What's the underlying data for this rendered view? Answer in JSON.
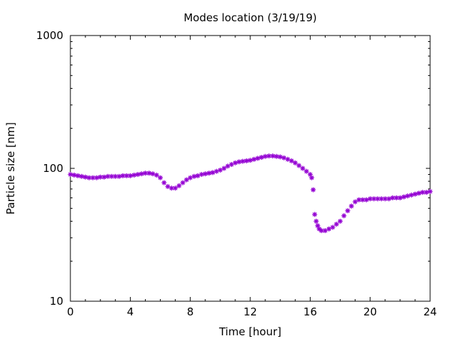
{
  "chart_data": {
    "type": "scatter",
    "title": "Modes location (3/19/19)",
    "xlabel": "Time [hour]",
    "ylabel": "Particle size [nm]",
    "xlim": [
      0,
      24
    ],
    "ylim": [
      10,
      1000
    ],
    "yscale": "log",
    "xticks": [
      "0",
      "4",
      "8",
      "12",
      "16",
      "20",
      "24"
    ],
    "yticks": [
      "10",
      "100",
      "1000"
    ],
    "grid": false,
    "marker_color": "#9400d3",
    "marker": "star",
    "series": [
      {
        "x": [
          0.0,
          0.25,
          0.5,
          0.75,
          1.0,
          1.25,
          1.5,
          1.75,
          2.0,
          2.25,
          2.5,
          2.75,
          3.0,
          3.25,
          3.5,
          3.75,
          4.0,
          4.25,
          4.5,
          4.75,
          5.0,
          5.25,
          5.5,
          5.75,
          6.0,
          6.25,
          6.5,
          6.75,
          7.0,
          7.25,
          7.5,
          7.75,
          8.0,
          8.25,
          8.5,
          8.75,
          9.0,
          9.25,
          9.5,
          9.75,
          10.0,
          10.25,
          10.5,
          10.75,
          11.0,
          11.25,
          11.5,
          11.75,
          12.0,
          12.25,
          12.5,
          12.75,
          13.0,
          13.25,
          13.5,
          13.75,
          14.0,
          14.25,
          14.5,
          14.75,
          15.0,
          15.25,
          15.5,
          15.75,
          16.0,
          16.1,
          16.2,
          16.3,
          16.4,
          16.5,
          16.6,
          16.75,
          17.0,
          17.25,
          17.5,
          17.75,
          18.0,
          18.25,
          18.5,
          18.75,
          19.0,
          19.25,
          19.5,
          19.75,
          20.0,
          20.25,
          20.5,
          20.75,
          21.0,
          21.25,
          21.5,
          21.75,
          22.0,
          22.25,
          22.5,
          22.75,
          23.0,
          23.25,
          23.5,
          23.75,
          24.0
        ],
        "y": [
          90,
          89,
          88,
          87,
          86,
          85,
          85,
          85,
          86,
          86,
          87,
          87,
          87,
          87,
          88,
          88,
          88,
          89,
          90,
          91,
          92,
          92,
          91,
          89,
          85,
          78,
          73,
          71,
          71,
          74,
          78,
          82,
          85,
          87,
          88,
          90,
          91,
          92,
          93,
          95,
          97,
          100,
          104,
          107,
          110,
          112,
          113,
          114,
          115,
          117,
          119,
          121,
          123,
          124,
          124,
          123,
          122,
          120,
          117,
          114,
          110,
          105,
          100,
          95,
          90,
          85,
          69,
          45,
          40,
          37,
          35,
          34,
          34,
          35,
          36,
          38,
          40,
          44,
          48,
          52,
          56,
          58,
          58,
          58,
          59,
          59,
          59,
          59,
          59,
          59,
          60,
          60,
          60,
          61,
          62,
          63,
          64,
          65,
          66,
          66,
          67
        ]
      }
    ]
  }
}
